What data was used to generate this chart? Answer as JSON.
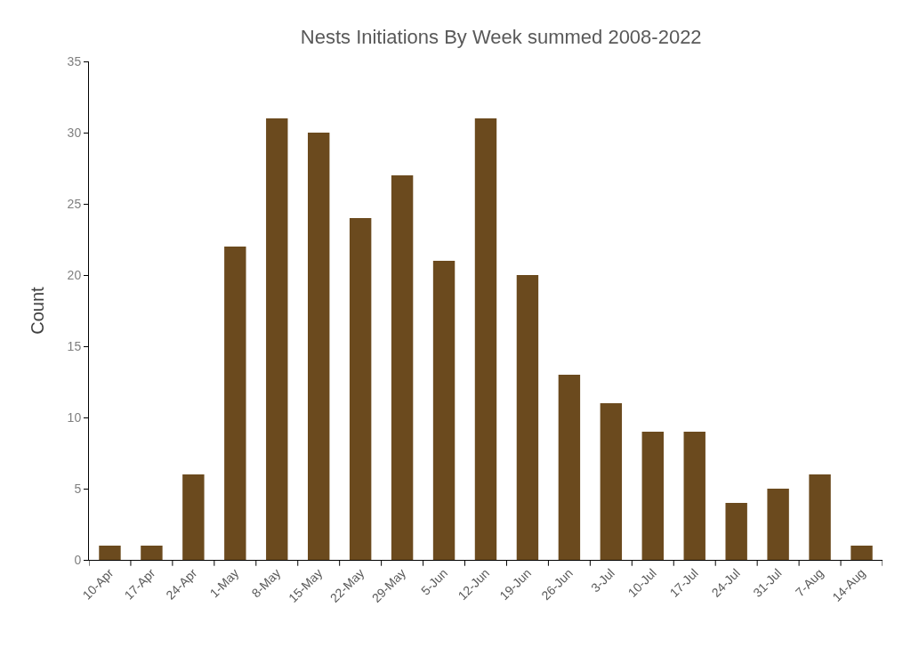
{
  "chart_data": {
    "type": "bar",
    "title": "Nests Initiations By Week summed 2008-2022",
    "ylabel": "Count",
    "categories": [
      "10-Apr",
      "17-Apr",
      "24-Apr",
      "1-May",
      "8-May",
      "15-May",
      "22-May",
      "29-May",
      "5-Jun",
      "12-Jun",
      "19-Jun",
      "26-Jun",
      "3-Jul",
      "10-Jul",
      "17-Jul",
      "24-Jul",
      "31-Jul",
      "7-Aug",
      "14-Aug"
    ],
    "values": [
      1,
      1,
      6,
      22,
      31,
      30,
      24,
      27,
      21,
      31,
      20,
      13,
      11,
      9,
      9,
      4,
      5,
      6,
      1
    ],
    "color": "#6b4a1e",
    "ylim": [
      0,
      35
    ],
    "yticks": [
      0,
      5,
      10,
      15,
      20,
      25,
      30,
      35
    ]
  }
}
